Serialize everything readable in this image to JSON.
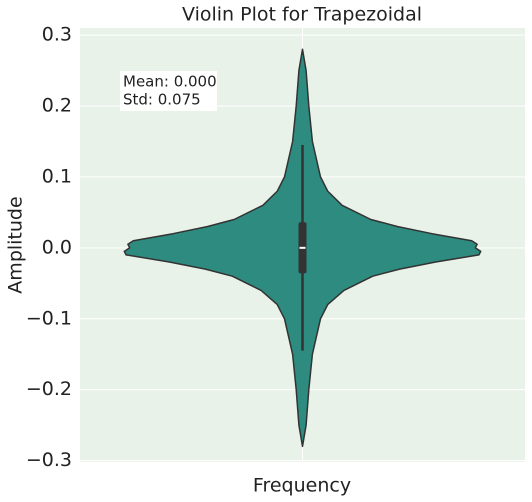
{
  "chart_data": {
    "type": "violin",
    "title": "Violin Plot for Trapezoidal",
    "xlabel": "Frequency",
    "ylabel": "Amplitude",
    "categories": [
      "Frequency"
    ],
    "annotation": [
      "Mean: 0.000",
      "Std: 0.075"
    ],
    "color": "#2e8b80",
    "ylim": [
      -0.302,
      0.31
    ],
    "yticks": [
      {
        "value": -0.3,
        "label": "−0.3"
      },
      {
        "value": -0.2,
        "label": "−0.2"
      },
      {
        "value": -0.1,
        "label": "−0.1"
      },
      {
        "value": 0,
        "label": "0.0"
      },
      0.1,
      0.2,
      0.3
    ],
    "grid": true,
    "kde": {
      "y": [
        0.28,
        0.25,
        0.2,
        0.15,
        0.1,
        0.08,
        0.06,
        0.04,
        0.03,
        0.02,
        0.01,
        0.005,
        0,
        -0.005,
        -0.01,
        -0.02,
        -0.03,
        -0.04,
        -0.06,
        -0.08,
        -0.1,
        -0.15,
        -0.2,
        -0.25,
        -0.28
      ],
      "density": [
        0,
        0.02,
        0.035,
        0.055,
        0.1,
        0.14,
        0.22,
        0.38,
        0.53,
        0.72,
        0.94,
        0.97,
        0.96,
        0.99,
        0.98,
        0.74,
        0.54,
        0.39,
        0.23,
        0.14,
        0.1,
        0.055,
        0.035,
        0.02,
        0
      ]
    },
    "box": {
      "whisker_low": -0.145,
      "q1": -0.036,
      "median": 0,
      "q3": 0.036,
      "whisker_high": 0.145
    }
  }
}
